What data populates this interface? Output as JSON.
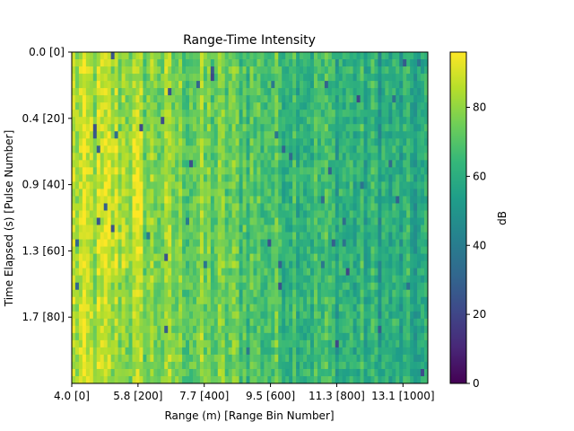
{
  "chart_data": {
    "type": "heatmap",
    "title": "Range-Time Intensity",
    "xlabel": "Range (m) [Range Bin Number]",
    "ylabel": "Time Elapsed (s) [Pulse Number]",
    "x_tick_labels": [
      "4.0  [0]",
      "5.8  [200]",
      "7.7  [400]",
      "9.5  [600]",
      "11.3  [800]",
      "13.1  [1000]"
    ],
    "x_tick_bins": [
      0,
      200,
      400,
      600,
      800,
      1000
    ],
    "y_tick_labels": [
      "0.0  [0]",
      "0.4  [20]",
      "0.9  [40]",
      "1.3  [60]",
      "1.7  [80]"
    ],
    "y_tick_pulses": [
      0,
      20,
      40,
      60,
      80
    ],
    "xlim_bins": [
      0,
      1000
    ],
    "ylim_pulses": [
      0,
      100
    ],
    "colorbar": {
      "label": "dB",
      "ticks": [
        0,
        20,
        40,
        60,
        80
      ],
      "range": [
        0,
        96
      ],
      "colormap": "viridis"
    },
    "intensity_summary": {
      "near_range_dB": 85,
      "far_range_dB": 55,
      "peak_region_bins": [
        100,
        220
      ],
      "peak_region_pulses": [
        25,
        65
      ]
    }
  }
}
